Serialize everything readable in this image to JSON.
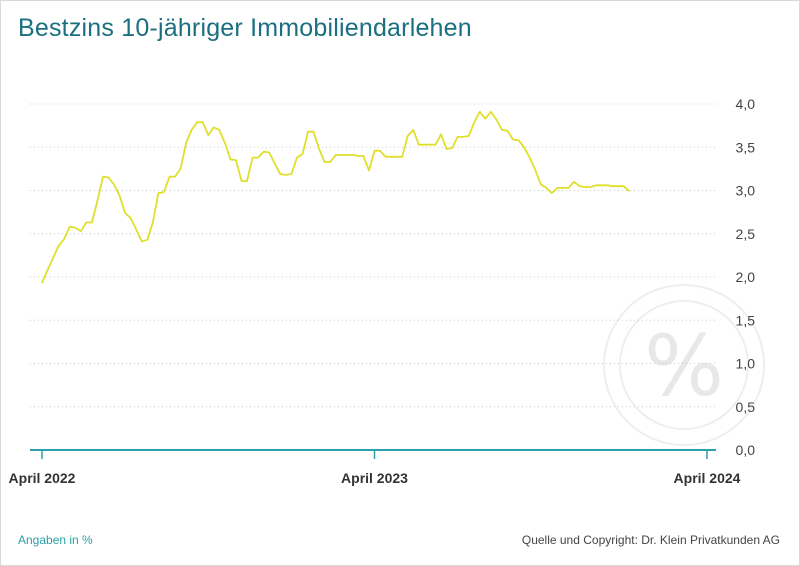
{
  "title": "Bestzins 10-jähriger Immobiliendarlehen",
  "note": "Angaben in %",
  "source": "Quelle und Copyright: Dr. Klein Privatkunden AG",
  "watermark": "%",
  "colors": {
    "title": "#1a6f80",
    "line": "#e0df2c",
    "axis": "#2aa0a8",
    "grid": "#c8c8c8",
    "watermark": "#e6e6e6"
  },
  "chart_data": {
    "type": "line",
    "title": "Bestzins 10-jähriger Immobiliendarlehen",
    "xlabel": "",
    "ylabel": "",
    "ylim": [
      0,
      4
    ],
    "yticks": [
      0,
      0.5,
      1,
      1.5,
      2,
      2.5,
      3,
      3.5,
      4
    ],
    "ytick_labels": [
      "0,0",
      "0,5",
      "1,0",
      "1,5",
      "2,0",
      "2,5",
      "3,0",
      "3,5",
      "4,0"
    ],
    "grid": true,
    "xlim": [
      0,
      24.9
    ],
    "xticks": [
      {
        "x": 0.5,
        "label": "April 2022"
      },
      {
        "x": 12.5,
        "label": "April 2023"
      },
      {
        "x": 24.5,
        "label": "April 2024"
      }
    ],
    "series": [
      {
        "values": [
          [
            0.5,
            1.93
          ],
          [
            0.7,
            2.08
          ],
          [
            0.9,
            2.22
          ],
          [
            1.1,
            2.36
          ],
          [
            1.3,
            2.44
          ],
          [
            1.5,
            2.58
          ],
          [
            1.7,
            2.57
          ],
          [
            1.9,
            2.53
          ],
          [
            2.1,
            2.63
          ],
          [
            2.3,
            2.63
          ],
          [
            2.5,
            2.88
          ],
          [
            2.7,
            3.16
          ],
          [
            2.9,
            3.15
          ],
          [
            3.1,
            3.07
          ],
          [
            3.3,
            2.94
          ],
          [
            3.5,
            2.74
          ],
          [
            3.7,
            2.68
          ],
          [
            3.9,
            2.55
          ],
          [
            4.1,
            2.41
          ],
          [
            4.3,
            2.43
          ],
          [
            4.5,
            2.63
          ],
          [
            4.7,
            2.97
          ],
          [
            4.9,
            2.98
          ],
          [
            5.1,
            3.16
          ],
          [
            5.3,
            3.16
          ],
          [
            5.5,
            3.25
          ],
          [
            5.7,
            3.55
          ],
          [
            5.9,
            3.7
          ],
          [
            6.1,
            3.79
          ],
          [
            6.3,
            3.79
          ],
          [
            6.5,
            3.64
          ],
          [
            6.7,
            3.73
          ],
          [
            6.9,
            3.7
          ],
          [
            7.1,
            3.55
          ],
          [
            7.3,
            3.36
          ],
          [
            7.5,
            3.35
          ],
          [
            7.7,
            3.11
          ],
          [
            7.9,
            3.11
          ],
          [
            8.1,
            3.38
          ],
          [
            8.3,
            3.38
          ],
          [
            8.5,
            3.45
          ],
          [
            8.7,
            3.44
          ],
          [
            8.9,
            3.31
          ],
          [
            9.1,
            3.19
          ],
          [
            9.3,
            3.18
          ],
          [
            9.5,
            3.19
          ],
          [
            9.7,
            3.38
          ],
          [
            9.9,
            3.42
          ],
          [
            10.1,
            3.68
          ],
          [
            10.3,
            3.68
          ],
          [
            10.5,
            3.48
          ],
          [
            10.7,
            3.33
          ],
          [
            10.9,
            3.33
          ],
          [
            11.1,
            3.41
          ],
          [
            11.3,
            3.41
          ],
          [
            11.5,
            3.41
          ],
          [
            11.7,
            3.41
          ],
          [
            11.9,
            3.4
          ],
          [
            12.1,
            3.4
          ],
          [
            12.3,
            3.23
          ],
          [
            12.5,
            3.46
          ],
          [
            12.7,
            3.46
          ],
          [
            12.9,
            3.39
          ],
          [
            13.1,
            3.39
          ],
          [
            13.3,
            3.39
          ],
          [
            13.5,
            3.39
          ],
          [
            13.7,
            3.63
          ],
          [
            13.9,
            3.7
          ],
          [
            14.1,
            3.53
          ],
          [
            14.3,
            3.53
          ],
          [
            14.5,
            3.53
          ],
          [
            14.7,
            3.53
          ],
          [
            14.9,
            3.65
          ],
          [
            15.1,
            3.48
          ],
          [
            15.3,
            3.49
          ],
          [
            15.5,
            3.62
          ],
          [
            15.7,
            3.62
          ],
          [
            15.9,
            3.63
          ],
          [
            16.1,
            3.79
          ],
          [
            16.3,
            3.91
          ],
          [
            16.5,
            3.83
          ],
          [
            16.7,
            3.91
          ],
          [
            16.9,
            3.82
          ],
          [
            17.1,
            3.7
          ],
          [
            17.3,
            3.69
          ],
          [
            17.5,
            3.59
          ],
          [
            17.7,
            3.58
          ],
          [
            17.9,
            3.5
          ],
          [
            18.1,
            3.38
          ],
          [
            18.3,
            3.24
          ],
          [
            18.5,
            3.07
          ],
          [
            18.7,
            3.03
          ],
          [
            18.9,
            2.97
          ],
          [
            19.1,
            3.03
          ],
          [
            19.3,
            3.03
          ],
          [
            19.5,
            3.03
          ],
          [
            19.7,
            3.1
          ],
          [
            19.9,
            3.05
          ],
          [
            20.1,
            3.04
          ],
          [
            20.3,
            3.04
          ],
          [
            20.5,
            3.06
          ],
          [
            20.7,
            3.06
          ],
          [
            20.9,
            3.06
          ],
          [
            21.1,
            3.05
          ],
          [
            21.3,
            3.05
          ],
          [
            21.5,
            3.05
          ],
          [
            21.7,
            2.99
          ]
        ]
      }
    ]
  }
}
